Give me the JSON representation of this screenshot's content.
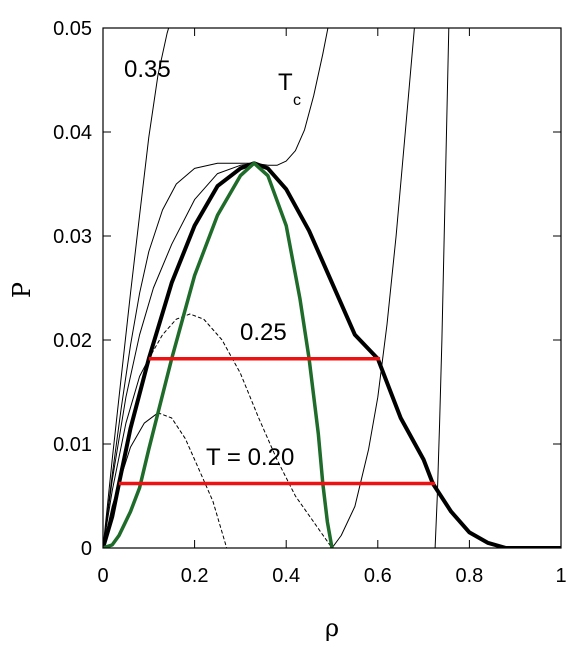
{
  "chart_data": {
    "type": "line",
    "title": "",
    "xlabel": "ρ",
    "ylabel": "P",
    "xlim": [
      0,
      1
    ],
    "ylim": [
      0,
      0.05
    ],
    "grid": false,
    "x_ticks": [
      "0",
      "0.2",
      "0.4",
      "0.6",
      "0.8",
      "1"
    ],
    "y_ticks": [
      "0",
      "0.01",
      "0.02",
      "0.03",
      "0.04",
      "0.05"
    ],
    "annotations": {
      "t035": "0.35",
      "tc_main": "T",
      "tc_sub": "c",
      "t025": "0.25",
      "t020": "T = 0.20"
    },
    "series": [
      {
        "style": "thin",
        "color": "#000000",
        "points": [
          [
            0,
            0
          ],
          [
            0.02,
            0.0085
          ],
          [
            0.04,
            0.0165
          ],
          [
            0.06,
            0.0245
          ],
          [
            0.08,
            0.032
          ],
          [
            0.1,
            0.0395
          ],
          [
            0.12,
            0.0455
          ],
          [
            0.14,
            0.0495
          ],
          [
            0.16,
            0.0525
          ]
        ]
      },
      {
        "style": "thin",
        "color": "#000000",
        "points": [
          [
            0,
            0
          ],
          [
            0.02,
            0.007
          ],
          [
            0.04,
            0.0135
          ],
          [
            0.06,
            0.0195
          ],
          [
            0.08,
            0.0245
          ],
          [
            0.1,
            0.0285
          ],
          [
            0.13,
            0.0325
          ],
          [
            0.16,
            0.035
          ],
          [
            0.2,
            0.0365
          ],
          [
            0.25,
            0.037
          ],
          [
            0.3,
            0.037
          ],
          [
            0.33,
            0.037
          ],
          [
            0.36,
            0.0368
          ],
          [
            0.38,
            0.0368
          ],
          [
            0.4,
            0.0372
          ],
          [
            0.42,
            0.0382
          ],
          [
            0.44,
            0.0402
          ],
          [
            0.46,
            0.0435
          ],
          [
            0.48,
            0.0475
          ],
          [
            0.5,
            0.052
          ]
        ]
      },
      {
        "style": "thin",
        "color": "#000000",
        "points": [
          [
            0,
            0
          ],
          [
            0.02,
            0.0065
          ],
          [
            0.05,
            0.0145
          ],
          [
            0.08,
            0.0205
          ],
          [
            0.11,
            0.025
          ],
          [
            0.15,
            0.0292
          ],
          [
            0.2,
            0.0335
          ],
          [
            0.25,
            0.036
          ],
          [
            0.3,
            0.0368
          ],
          [
            0.33,
            0.037
          ]
        ]
      },
      {
        "style": "thin",
        "color": "#000000",
        "points": [
          [
            0,
            0
          ],
          [
            0.02,
            0.0055
          ],
          [
            0.05,
            0.012
          ],
          [
            0.08,
            0.0165
          ],
          [
            0.1,
            0.0182
          ]
        ]
      },
      {
        "style": "dashed",
        "color": "#000000",
        "points": [
          [
            0.1,
            0.0182
          ],
          [
            0.13,
            0.0205
          ],
          [
            0.16,
            0.022
          ],
          [
            0.19,
            0.0225
          ],
          [
            0.22,
            0.022
          ],
          [
            0.26,
            0.02
          ],
          [
            0.3,
            0.0168
          ],
          [
            0.34,
            0.0125
          ],
          [
            0.38,
            0.0085
          ],
          [
            0.42,
            0.005
          ],
          [
            0.46,
            0.0025
          ],
          [
            0.5,
            0
          ]
        ]
      },
      {
        "style": "thin",
        "color": "#000000",
        "points": [
          [
            0.5,
            0
          ],
          [
            0.52,
            0.0012
          ],
          [
            0.55,
            0.004
          ],
          [
            0.58,
            0.0095
          ],
          [
            0.6,
            0.0145
          ],
          [
            0.62,
            0.0215
          ],
          [
            0.64,
            0.03
          ],
          [
            0.66,
            0.04
          ],
          [
            0.68,
            0.05
          ]
        ]
      },
      {
        "style": "thin",
        "color": "#000000",
        "points": [
          [
            0,
            0
          ],
          [
            0.02,
            0.004
          ],
          [
            0.035,
            0.0062
          ]
        ]
      },
      {
        "style": "thin",
        "color": "#000000",
        "points": [
          [
            0.035,
            0.0062
          ],
          [
            0.06,
            0.0097
          ],
          [
            0.09,
            0.012
          ],
          [
            0.12,
            0.013
          ]
        ]
      },
      {
        "style": "dashed",
        "color": "#000000",
        "points": [
          [
            0.12,
            0.013
          ],
          [
            0.15,
            0.0125
          ],
          [
            0.18,
            0.0105
          ],
          [
            0.21,
            0.0075
          ],
          [
            0.24,
            0.0045
          ],
          [
            0.27,
            0
          ]
        ]
      },
      {
        "style": "thin",
        "color": "#000000",
        "points": [
          [
            0.725,
            0
          ],
          [
            0.73,
            0.005
          ],
          [
            0.735,
            0.012
          ],
          [
            0.74,
            0.02
          ],
          [
            0.745,
            0.03
          ],
          [
            0.75,
            0.04
          ],
          [
            0.755,
            0.05
          ]
        ]
      },
      {
        "style": "bold",
        "color": "#000000",
        "points": [
          [
            0,
            0
          ],
          [
            0.02,
            0.003
          ],
          [
            0.035,
            0.0062
          ],
          [
            0.06,
            0.0115
          ],
          [
            0.1,
            0.0182
          ],
          [
            0.15,
            0.0255
          ],
          [
            0.2,
            0.031
          ],
          [
            0.25,
            0.0348
          ],
          [
            0.3,
            0.0365
          ],
          [
            0.33,
            0.037
          ],
          [
            0.36,
            0.0365
          ],
          [
            0.4,
            0.0345
          ],
          [
            0.45,
            0.0305
          ],
          [
            0.5,
            0.0255
          ],
          [
            0.55,
            0.0205
          ],
          [
            0.6,
            0.0182
          ],
          [
            0.65,
            0.0125
          ],
          [
            0.7,
            0.0085
          ],
          [
            0.72,
            0.0062
          ],
          [
            0.76,
            0.0035
          ],
          [
            0.8,
            0.0015
          ],
          [
            0.84,
            0.0005
          ],
          [
            0.88,
            0
          ],
          [
            1,
            0
          ]
        ]
      },
      {
        "style": "green",
        "color": "#1e6b2a",
        "points": [
          [
            0,
            0
          ],
          [
            0.02,
            0.0003
          ],
          [
            0.035,
            0.0012
          ],
          [
            0.06,
            0.0035
          ],
          [
            0.08,
            0.0058
          ],
          [
            0.1,
            0.0095
          ],
          [
            0.12,
            0.013
          ],
          [
            0.15,
            0.0182
          ],
          [
            0.2,
            0.0262
          ],
          [
            0.25,
            0.032
          ],
          [
            0.3,
            0.0358
          ],
          [
            0.33,
            0.037
          ],
          [
            0.36,
            0.0358
          ],
          [
            0.4,
            0.031
          ],
          [
            0.43,
            0.024
          ],
          [
            0.45,
            0.0182
          ],
          [
            0.47,
            0.011
          ],
          [
            0.48,
            0.0062
          ],
          [
            0.49,
            0.0025
          ],
          [
            0.5,
            0
          ]
        ]
      },
      {
        "style": "red",
        "color": "#ee1111",
        "points": [
          [
            0.1,
            0.0182
          ],
          [
            0.605,
            0.0182
          ]
        ]
      },
      {
        "style": "red",
        "color": "#ee1111",
        "points": [
          [
            0.035,
            0.0062
          ],
          [
            0.725,
            0.0062
          ]
        ]
      }
    ]
  }
}
